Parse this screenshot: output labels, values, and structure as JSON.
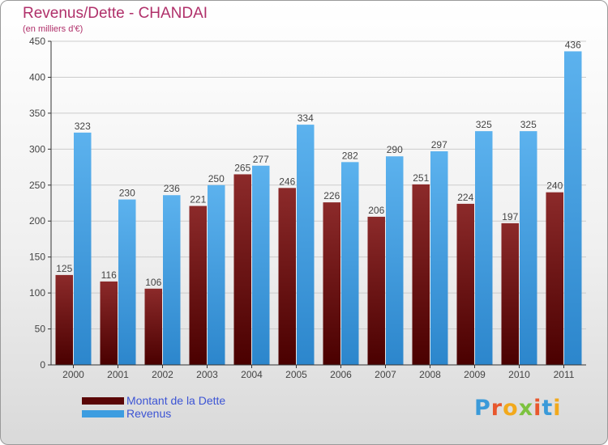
{
  "header": {
    "title": "Revenus/Dette - CHANDAI",
    "subtitle": "(en milliers d'€)"
  },
  "legend": {
    "items": [
      {
        "label": "Montant de la Dette",
        "color": "#7a1010"
      },
      {
        "label": "Revenus",
        "color": "#3d9de0"
      }
    ]
  },
  "logo": {
    "text": "Proxiti"
  },
  "colors": {
    "dette_top": "#8c2a2a",
    "dette_bottom": "#4a0000",
    "revenus_top": "#5cb2ee",
    "revenus_bottom": "#2c86cc",
    "grid": "#cccccc",
    "axis": "#333333",
    "label": "#444444"
  },
  "chart_data": {
    "type": "bar",
    "title": "Revenus/Dette - CHANDAI",
    "subtitle": "(en milliers d'€)",
    "categories": [
      "2000",
      "2001",
      "2002",
      "2003",
      "2004",
      "2005",
      "2006",
      "2007",
      "2008",
      "2009",
      "2010",
      "2011"
    ],
    "series": [
      {
        "name": "Montant de la Dette",
        "values": [
          125,
          116,
          106,
          221,
          265,
          246,
          226,
          206,
          251,
          224,
          197,
          240
        ]
      },
      {
        "name": "Revenus",
        "values": [
          323,
          230,
          236,
          250,
          277,
          334,
          282,
          290,
          297,
          325,
          325,
          436
        ]
      }
    ],
    "ylim": [
      0,
      450
    ],
    "yticks": [
      0,
      50,
      100,
      150,
      200,
      250,
      300,
      350,
      400,
      450
    ],
    "grid": true,
    "legend_position": "bottom-left"
  }
}
